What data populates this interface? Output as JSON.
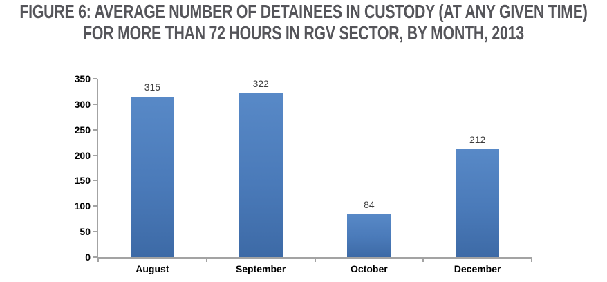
{
  "title": {
    "line1": "FIGURE 6: AVERAGE NUMBER OF DETAINEES IN CUSTODY (AT ANY GIVEN TIME)",
    "line2": "FOR MORE THAN 72 HOURS IN RGV SECTOR, BY MONTH, 2013"
  },
  "chart_data": {
    "type": "bar",
    "categories": [
      "August",
      "September",
      "October",
      "December"
    ],
    "values": [
      315,
      322,
      84,
      212
    ],
    "data_labels": [
      "315",
      "322",
      "84",
      "212"
    ],
    "title": "FIGURE 6: AVERAGE NUMBER OF DETAINEES IN CUSTODY (AT ANY GIVEN TIME) FOR MORE THAN 72 HOURS IN RGV SECTOR, BY MONTH, 2013",
    "xlabel": "",
    "ylabel": "",
    "ylim": [
      0,
      350
    ],
    "yticks": [
      0,
      50,
      100,
      150,
      200,
      250,
      300,
      350
    ],
    "grid": false,
    "legend": false,
    "colors": {
      "bar_top": "#5889c7",
      "bar_bottom": "#3d6aa6",
      "axis": "#a3a3a3",
      "tick_label": "#000000",
      "data_label": "#3d3d3d",
      "title_text": "#55555a",
      "background": "#ffffff"
    }
  }
}
